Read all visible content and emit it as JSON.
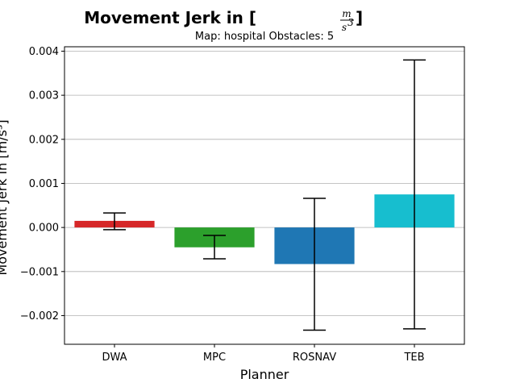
{
  "chart_data": {
    "type": "bar",
    "title_prefix": "Movement Jerk in [",
    "title_unit_num": "m",
    "title_unit_den": "s",
    "title_unit_den_exp": "3",
    "title_suffix": "]",
    "subtitle": "Map: hospital Obstacles: 5",
    "xlabel": "Planner",
    "ylabel": "Movement Jerk in [m/s³]",
    "categories": [
      "DWA",
      "MPC",
      "ROSNAV",
      "TEB"
    ],
    "values": [
      0.00015,
      -0.00045,
      -0.00083,
      0.00075
    ],
    "err_low": [
      -5e-05,
      -0.00071,
      -0.00233,
      -0.0023
    ],
    "err_high": [
      0.00033,
      -0.00018,
      0.00066,
      0.0038
    ],
    "colors": [
      "#d62728",
      "#2ca02c",
      "#1f77b4",
      "#17becf"
    ],
    "ylim": [
      -0.00265,
      0.0041
    ],
    "yticks": [
      0.004,
      0.003,
      0.002,
      0.001,
      0.0,
      -0.001,
      -0.002
    ],
    "ytick_labels": [
      "0.004",
      "0.003",
      "0.002",
      "0.001",
      "0.000",
      "−0.001",
      "−0.002"
    ],
    "grid": "y-major"
  }
}
